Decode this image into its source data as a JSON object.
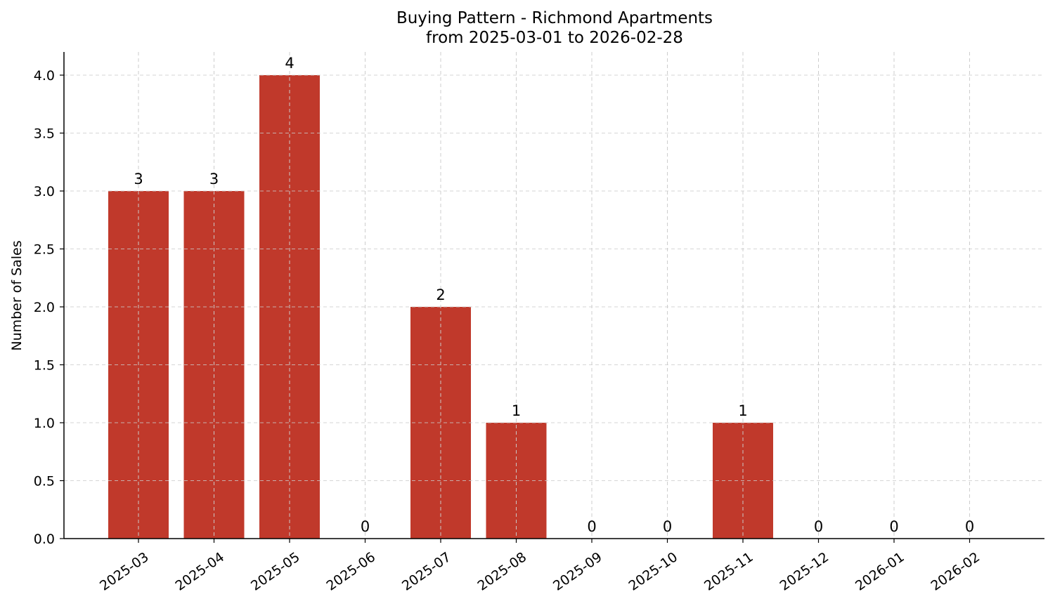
{
  "chart_data": {
    "type": "bar",
    "title": "Buying Pattern - Richmond Apartments",
    "subtitle": "from 2025-03-01 to 2026-02-28",
    "xlabel": "",
    "ylabel": "Number of Sales",
    "categories": [
      "2025-03",
      "2025-04",
      "2025-05",
      "2025-06",
      "2025-07",
      "2025-08",
      "2025-09",
      "2025-10",
      "2025-11",
      "2025-12",
      "2026-01",
      "2026-02"
    ],
    "values": [
      3,
      3,
      4,
      0,
      2,
      1,
      0,
      0,
      1,
      0,
      0,
      0
    ],
    "data_labels": [
      "3",
      "3",
      "4",
      "0",
      "2",
      "1",
      "0",
      "0",
      "1",
      "0",
      "0",
      "0"
    ],
    "ylim": [
      0,
      4.2
    ],
    "yticks": [
      0.0,
      0.5,
      1.0,
      1.5,
      2.0,
      2.5,
      3.0,
      3.5,
      4.0
    ],
    "ytick_labels": [
      "0.0",
      "0.5",
      "1.0",
      "1.5",
      "2.0",
      "2.5",
      "3.0",
      "3.5",
      "4.0"
    ],
    "grid": true,
    "bar_color": "#c0392b"
  }
}
